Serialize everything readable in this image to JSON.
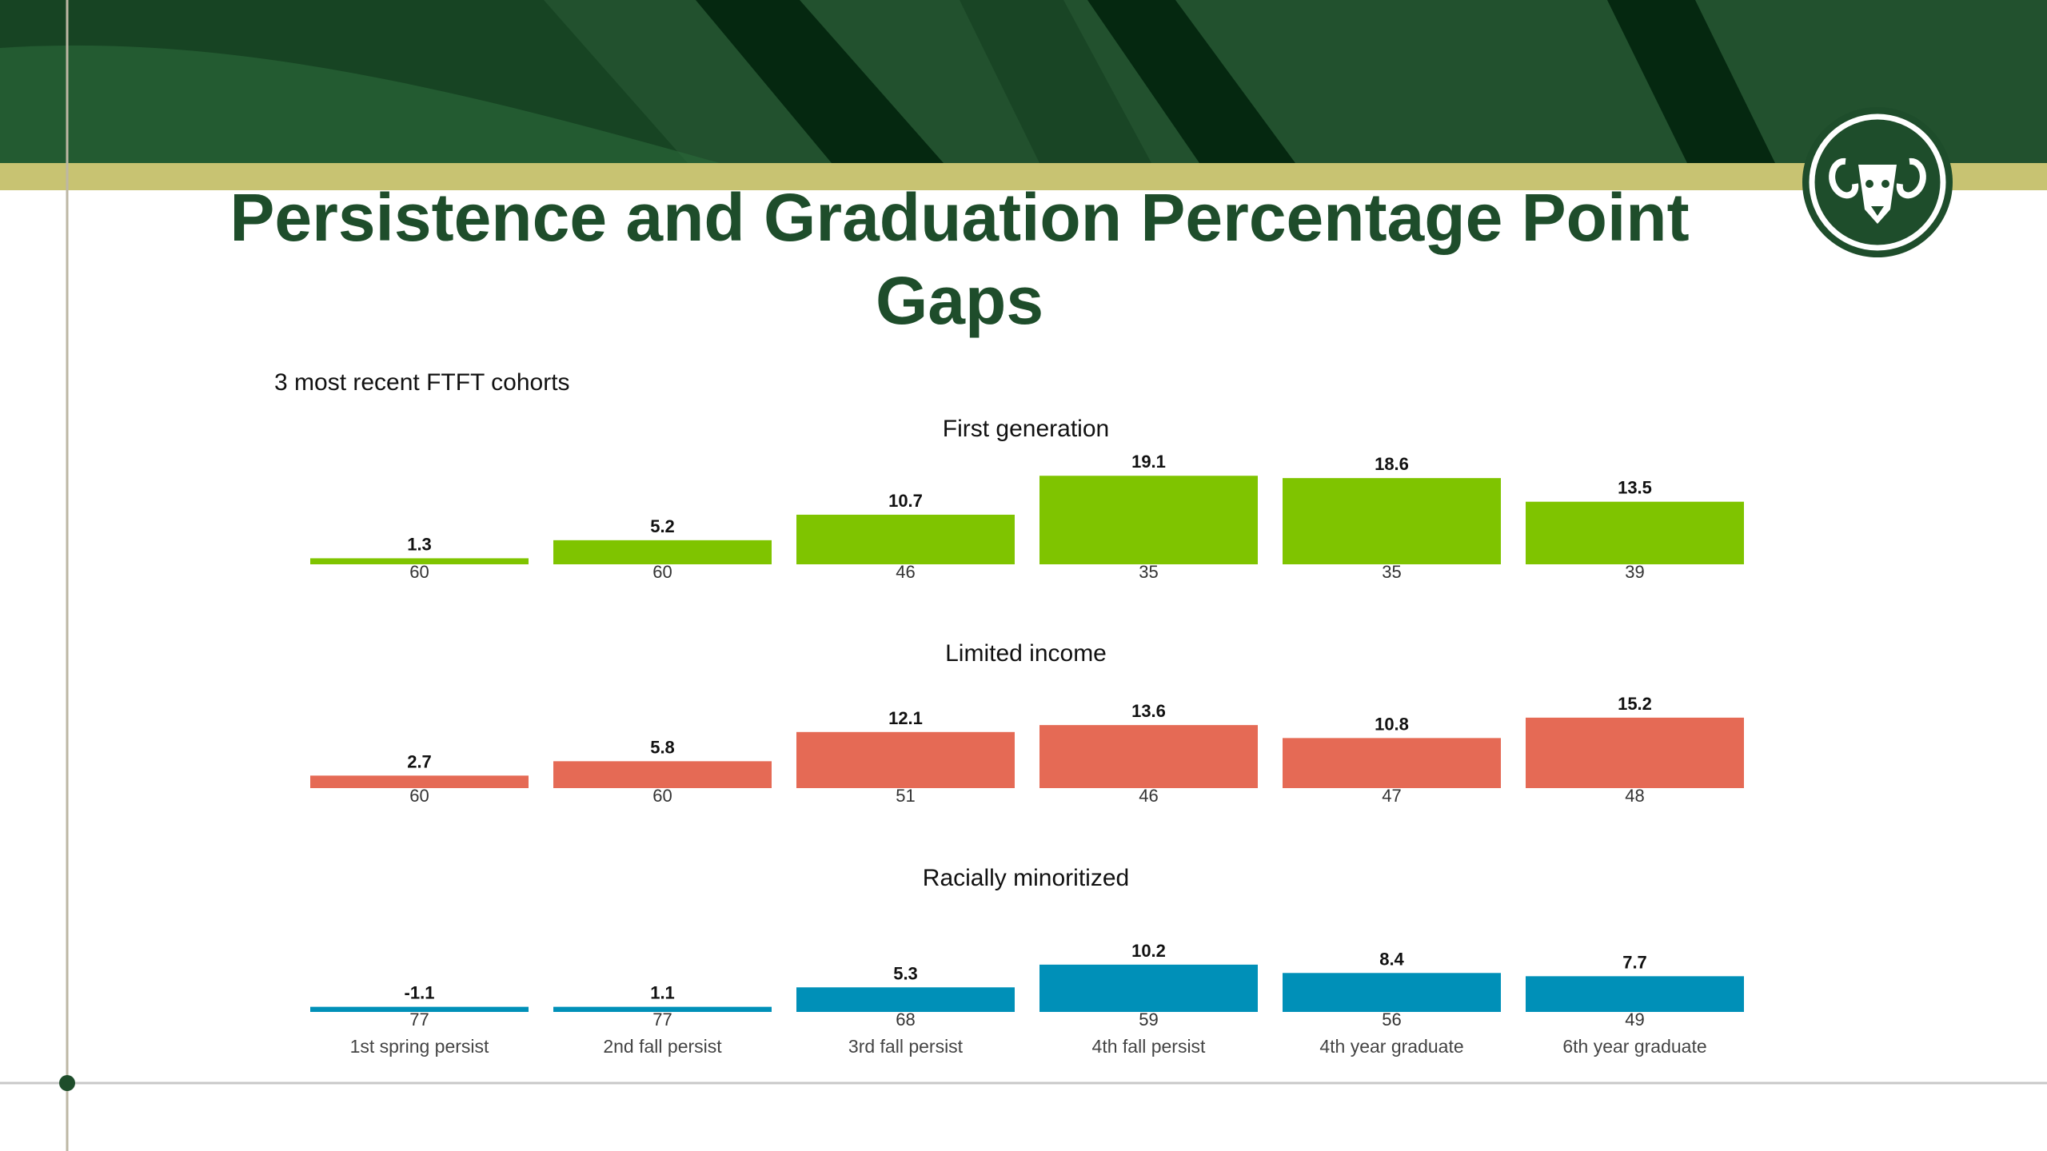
{
  "slide": {
    "title": "Persistence and Graduation Percentage Point Gaps",
    "subtitle": "3 most recent FTFT cohorts"
  },
  "colors": {
    "brand_green": "#1e4d2b",
    "gold_band": "#c8c372",
    "first_generation": "#7fc400",
    "limited_income": "#e56a55",
    "racially_minoritized": "#0090b8"
  },
  "chart_data": [
    {
      "type": "bar",
      "title": "First generation",
      "categories": [
        "1st spring persist",
        "2nd fall persist",
        "3rd fall persist",
        "4th fall persist",
        "4th year graduate",
        "6th year graduate"
      ],
      "values": [
        1.3,
        5.2,
        10.7,
        19.1,
        18.6,
        13.5
      ],
      "counts": [
        60,
        60,
        46,
        35,
        35,
        39
      ],
      "color": "#7fc400"
    },
    {
      "type": "bar",
      "title": "Limited income",
      "categories": [
        "1st spring persist",
        "2nd fall persist",
        "3rd fall persist",
        "4th fall persist",
        "4th year graduate",
        "6th year graduate"
      ],
      "values": [
        2.7,
        5.8,
        12.1,
        13.6,
        10.8,
        15.2
      ],
      "counts": [
        60,
        60,
        51,
        46,
        47,
        48
      ],
      "color": "#e56a55"
    },
    {
      "type": "bar",
      "title": "Racially minoritized",
      "categories": [
        "1st spring persist",
        "2nd fall persist",
        "3rd fall persist",
        "4th fall persist",
        "4th year graduate",
        "6th year graduate"
      ],
      "values": [
        -1.1,
        1.1,
        5.3,
        10.2,
        8.4,
        7.7
      ],
      "counts": [
        77,
        77,
        68,
        59,
        56,
        49
      ],
      "color": "#0090b8"
    }
  ]
}
